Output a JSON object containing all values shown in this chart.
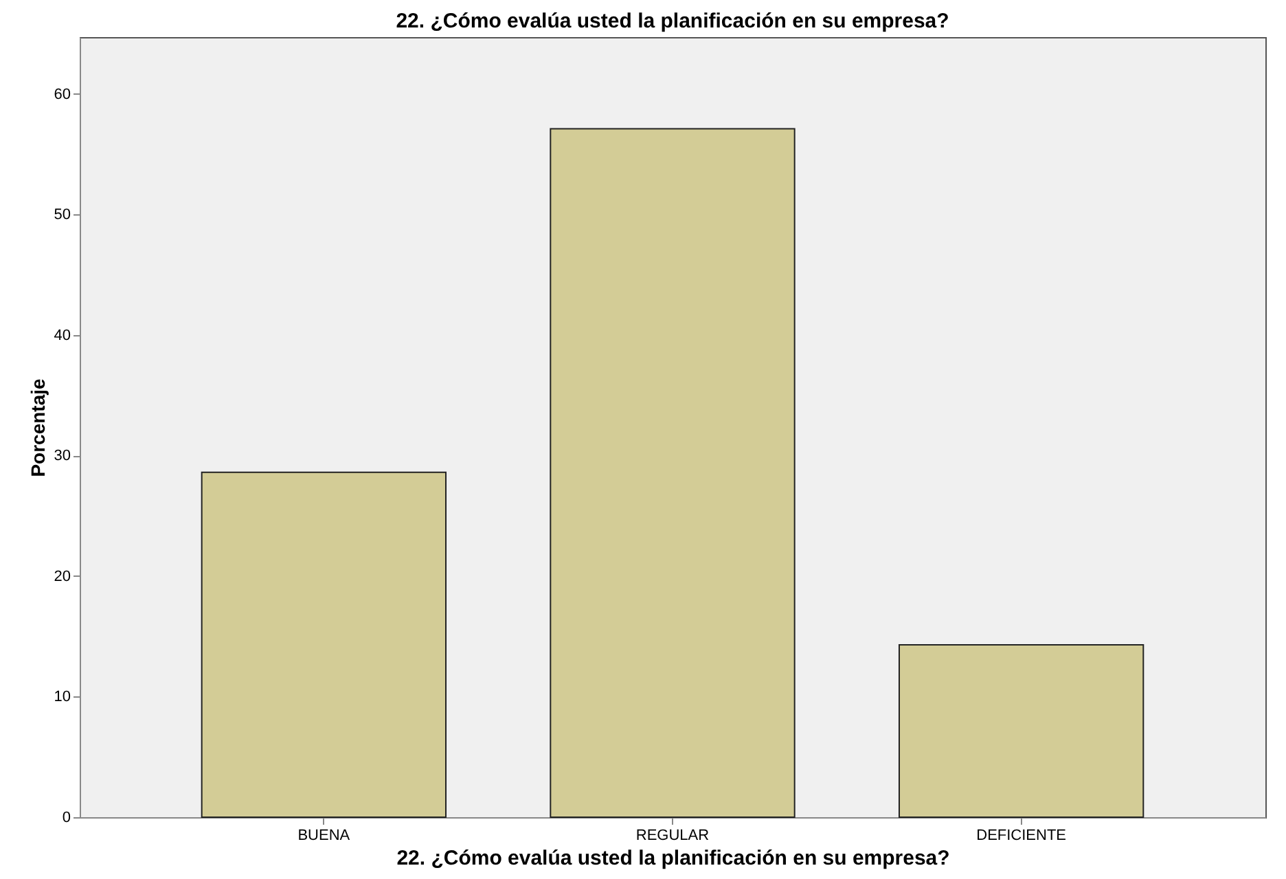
{
  "chart_data": {
    "type": "bar",
    "title": "22. ¿Cómo evalúa usted la planificación en su empresa?",
    "xlabel": "22. ¿Cómo evalúa usted la planificación en su empresa?",
    "ylabel": "Porcentaje",
    "categories": [
      "BUENA",
      "REGULAR",
      "DEFICIENTE"
    ],
    "values": [
      28.6,
      57.1,
      14.3
    ],
    "color": "#d3cc96",
    "ylim": [
      0,
      64.7
    ],
    "yticks": [
      0,
      10,
      20,
      30,
      40,
      50,
      60
    ],
    "grid": false
  }
}
